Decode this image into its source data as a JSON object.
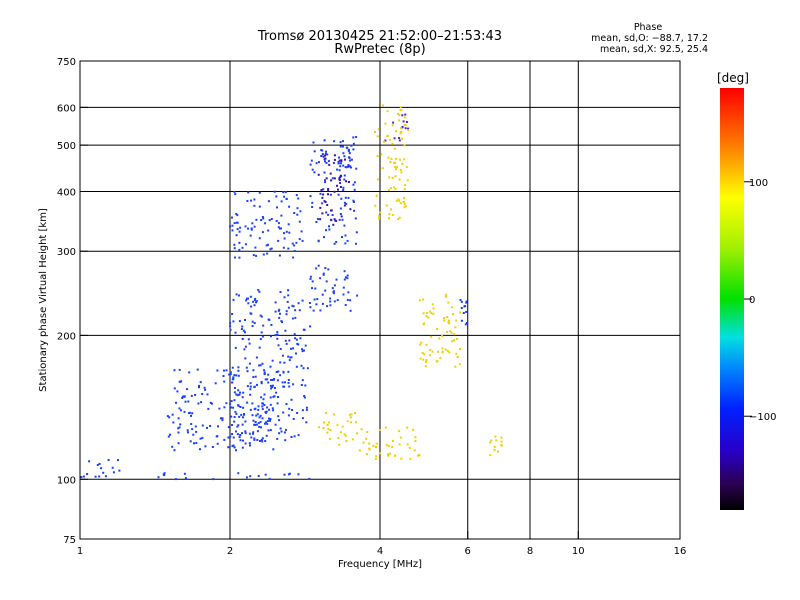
{
  "chart_data": {
    "type": "scatter",
    "title": "Tromsø 20130425 21:52:00–21:53:43",
    "subtitle": "RwPretec (8p)",
    "xlabel": "Frequency [MHz]",
    "ylabel": "Stationary phase Virtual Height [km]",
    "x_scale": "log",
    "y_scale": "log",
    "xlim": [
      1,
      16
    ],
    "ylim": [
      75,
      750
    ],
    "x_ticks": [
      1,
      2,
      4,
      6,
      8,
      10,
      16
    ],
    "x_tick_labels": [
      "1",
      "2",
      "4",
      "6",
      "8",
      "10",
      "16"
    ],
    "y_ticks": [
      75,
      100,
      200,
      300,
      400,
      500,
      600,
      750
    ],
    "y_tick_labels": [
      "75",
      "100",
      "200",
      "300",
      "400",
      "500",
      "600",
      "750"
    ],
    "grid": true,
    "phase_stats": {
      "title": "Phase",
      "line_o": "mean, sd,O: −88.7, 17.2",
      "line_x": "mean, sd,X:  92.5, 25.4"
    },
    "colorbar": {
      "label": "[deg]",
      "min": -180,
      "max": 180,
      "ticks": [
        100,
        0,
        -100
      ],
      "tick_labels": [
        "100",
        "0",
        "−100"
      ]
    },
    "series": [
      {
        "name": "O",
        "approx_color": "#1a40ff",
        "clusters": [
          {
            "f": [
              1.4,
              2.9
            ],
            "h": [
              100,
              103
            ]
          },
          {
            "f": [
              1.5,
              2.5
            ],
            "h": [
              115,
              170
            ]
          },
          {
            "f": [
              2.0,
              2.9
            ],
            "h": [
              120,
              250
            ]
          },
          {
            "f": [
              2.0,
              2.8
            ],
            "h": [
              290,
              400
            ]
          },
          {
            "f": [
              2.9,
              3.6
            ],
            "h": [
              220,
              280
            ]
          },
          {
            "f": [
              2.9,
              3.6
            ],
            "h": [
              310,
              520
            ]
          },
          {
            "f": [
              3.3,
              3.6
            ],
            "h": [
              450,
              500
            ]
          },
          {
            "f": [
              3.0,
              3.5
            ],
            "h": [
              340,
              480
            ],
            "approx_color": "#3a12a8"
          },
          {
            "f": [
              4.1,
              4.6
            ],
            "h": [
              510,
              580
            ],
            "approx_color": "#5028c0"
          },
          {
            "f": [
              1.0,
              1.2
            ],
            "h": [
              100,
              110
            ]
          },
          {
            "f": [
              5.8,
              6.0
            ],
            "h": [
              210,
              240
            ]
          }
        ]
      },
      {
        "name": "X",
        "approx_color": "#f0d000",
        "clusters": [
          {
            "f": [
              4.1,
              4.8
            ],
            "h": [
              110,
              130
            ]
          },
          {
            "f": [
              6.5,
              7.2
            ],
            "h": [
              112,
              124
            ]
          },
          {
            "f": [
              3.6,
              4.0
            ],
            "h": [
              110,
              130
            ]
          },
          {
            "f": [
              3.0,
              3.6
            ],
            "h": [
              118,
              140
            ]
          },
          {
            "f": [
              3.9,
              4.6
            ],
            "h": [
              350,
              610
            ]
          },
          {
            "f": [
              4.8,
              5.8
            ],
            "h": [
              170,
              250
            ]
          }
        ]
      }
    ]
  }
}
